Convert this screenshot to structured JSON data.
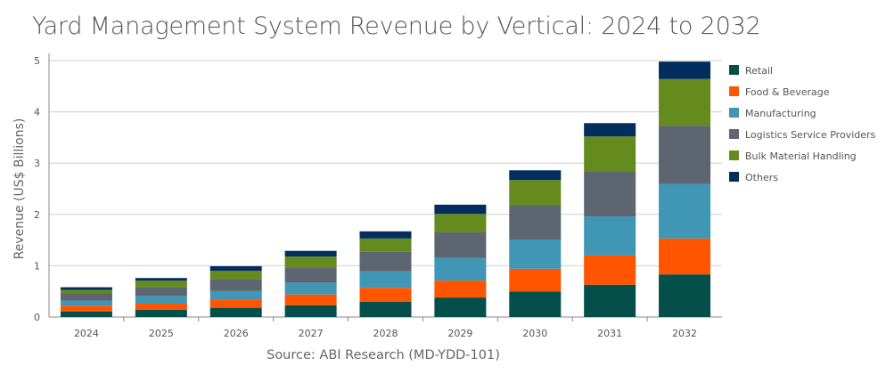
{
  "chart_data": {
    "type": "bar",
    "stacked": true,
    "title": "Yard Management System Revenue by Vertical: 2024 to 2032",
    "ylabel": "Revenue (US$ Billions)",
    "xlabel": "",
    "source": "Source: ABI Research (MD-YDD-101)",
    "ylim": [
      0,
      5
    ],
    "yticks": [
      "0",
      "1",
      "2",
      "3",
      "4",
      "5"
    ],
    "grid": true,
    "legend_position": "right",
    "categories": [
      "2024",
      "2025",
      "2026",
      "2027",
      "2028",
      "2029",
      "2030",
      "2031",
      "2032"
    ],
    "series": [
      {
        "name": "Retail",
        "color": "#054f4b",
        "values": [
          0.11,
          0.14,
          0.18,
          0.23,
          0.3,
          0.38,
          0.5,
          0.63,
          0.83
        ]
      },
      {
        "name": "Food & Beverage",
        "color": "#ff5500",
        "values": [
          0.11,
          0.12,
          0.16,
          0.21,
          0.27,
          0.33,
          0.44,
          0.57,
          0.7
        ]
      },
      {
        "name": "Manufacturing",
        "color": "#4096b5",
        "values": [
          0.1,
          0.15,
          0.17,
          0.23,
          0.32,
          0.44,
          0.57,
          0.76,
          1.06
        ]
      },
      {
        "name": "Logistics Service Providers",
        "color": "#5d6670",
        "values": [
          0.14,
          0.17,
          0.23,
          0.3,
          0.38,
          0.5,
          0.66,
          0.87,
          1.14
        ]
      },
      {
        "name": "Bulk Material Handling",
        "color": "#658b1e",
        "values": [
          0.07,
          0.13,
          0.16,
          0.21,
          0.26,
          0.36,
          0.5,
          0.69,
          0.91
        ]
      },
      {
        "name": "Others",
        "color": "#032c5f",
        "values": [
          0.05,
          0.05,
          0.09,
          0.11,
          0.14,
          0.18,
          0.19,
          0.26,
          0.34
        ]
      }
    ]
  }
}
